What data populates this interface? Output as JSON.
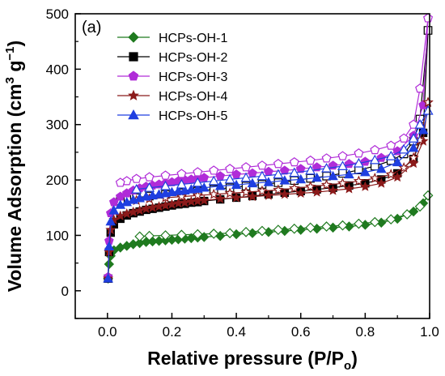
{
  "chart_data": {
    "type": "line",
    "panel_label": "(a)",
    "xlabel_main": "Relative pressure (P/P",
    "xlabel_sub": "o",
    "xlabel_close": ")",
    "ylabel_main": "Volume Adsorption (cm",
    "ylabel_sup1": "3",
    "ylabel_mid": " g",
    "ylabel_sup2": "−1",
    "ylabel_close": ")",
    "xlim": [
      -0.1,
      1.0
    ],
    "ylim": [
      -50,
      500
    ],
    "xticks": [
      "0.0",
      "0.2",
      "0.4",
      "0.6",
      "0.8",
      "1.0"
    ],
    "yticks": [
      "0",
      "100",
      "200",
      "300",
      "400",
      "500"
    ],
    "legend_position": "top-left",
    "series": [
      {
        "name": "HCPs-OH-1",
        "color": "#1f7a1f",
        "marker": "diamond",
        "adsorption": [
          [
            0.002,
            22
          ],
          [
            0.005,
            48
          ],
          [
            0.01,
            63
          ],
          [
            0.02,
            73
          ],
          [
            0.04,
            78
          ],
          [
            0.06,
            81
          ],
          [
            0.08,
            84
          ],
          [
            0.1,
            86
          ],
          [
            0.12,
            88
          ],
          [
            0.14,
            89
          ],
          [
            0.16,
            90
          ],
          [
            0.18,
            91
          ],
          [
            0.2,
            92
          ],
          [
            0.22,
            93
          ],
          [
            0.24,
            94
          ],
          [
            0.26,
            95
          ],
          [
            0.28,
            96
          ],
          [
            0.3,
            97
          ],
          [
            0.35,
            99
          ],
          [
            0.4,
            102
          ],
          [
            0.45,
            104
          ],
          [
            0.5,
            106
          ],
          [
            0.55,
            108
          ],
          [
            0.6,
            110
          ],
          [
            0.65,
            112
          ],
          [
            0.7,
            114
          ],
          [
            0.75,
            116
          ],
          [
            0.8,
            119
          ],
          [
            0.85,
            123
          ],
          [
            0.9,
            130
          ],
          [
            0.95,
            143
          ],
          [
            0.98,
            158
          ],
          [
            0.995,
            172
          ]
        ],
        "desorption": [
          [
            0.995,
            172
          ],
          [
            0.97,
            152
          ],
          [
            0.93,
            138
          ],
          [
            0.88,
            129
          ],
          [
            0.83,
            124
          ],
          [
            0.78,
            121
          ],
          [
            0.73,
            118
          ],
          [
            0.68,
            116
          ],
          [
            0.63,
            114
          ],
          [
            0.58,
            112
          ],
          [
            0.53,
            110
          ],
          [
            0.48,
            108
          ],
          [
            0.43,
            106
          ],
          [
            0.38,
            104
          ],
          [
            0.33,
            103
          ],
          [
            0.28,
            102
          ],
          [
            0.23,
            101
          ],
          [
            0.18,
            100
          ],
          [
            0.13,
            99
          ],
          [
            0.1,
            98
          ]
        ]
      },
      {
        "name": "HCPs-OH-2",
        "color": "#000000",
        "marker": "square",
        "adsorption": [
          [
            0.002,
            22
          ],
          [
            0.005,
            70
          ],
          [
            0.01,
            105
          ],
          [
            0.02,
            120
          ],
          [
            0.04,
            130
          ],
          [
            0.06,
            136
          ],
          [
            0.08,
            140
          ],
          [
            0.1,
            143
          ],
          [
            0.12,
            146
          ],
          [
            0.14,
            148
          ],
          [
            0.16,
            150
          ],
          [
            0.18,
            152
          ],
          [
            0.2,
            154
          ],
          [
            0.22,
            156
          ],
          [
            0.24,
            157
          ],
          [
            0.26,
            159
          ],
          [
            0.28,
            160
          ],
          [
            0.3,
            162
          ],
          [
            0.35,
            165
          ],
          [
            0.4,
            168
          ],
          [
            0.45,
            171
          ],
          [
            0.5,
            174
          ],
          [
            0.55,
            177
          ],
          [
            0.6,
            180
          ],
          [
            0.65,
            183
          ],
          [
            0.7,
            186
          ],
          [
            0.75,
            190
          ],
          [
            0.8,
            194
          ],
          [
            0.85,
            201
          ],
          [
            0.9,
            212
          ],
          [
            0.95,
            238
          ],
          [
            0.98,
            285
          ],
          [
            0.995,
            470
          ]
        ],
        "desorption": [
          [
            0.995,
            470
          ],
          [
            0.97,
            310
          ],
          [
            0.95,
            270
          ],
          [
            0.92,
            247
          ],
          [
            0.88,
            235
          ],
          [
            0.83,
            225
          ],
          [
            0.78,
            218
          ],
          [
            0.73,
            212
          ],
          [
            0.68,
            207
          ],
          [
            0.63,
            203
          ],
          [
            0.58,
            199
          ],
          [
            0.53,
            195
          ],
          [
            0.48,
            192
          ],
          [
            0.43,
            189
          ],
          [
            0.38,
            186
          ],
          [
            0.33,
            183
          ],
          [
            0.28,
            180
          ],
          [
            0.23,
            177
          ],
          [
            0.18,
            174
          ],
          [
            0.13,
            171
          ],
          [
            0.09,
            168
          ],
          [
            0.06,
            165
          ],
          [
            0.04,
            162
          ]
        ]
      },
      {
        "name": "HCPs-OH-3",
        "color": "#b02cd8",
        "marker": "pentagon",
        "adsorption": [
          [
            0.002,
            25
          ],
          [
            0.005,
            90
          ],
          [
            0.01,
            140
          ],
          [
            0.02,
            160
          ],
          [
            0.04,
            170
          ],
          [
            0.06,
            176
          ],
          [
            0.08,
            181
          ],
          [
            0.1,
            185
          ],
          [
            0.12,
            188
          ],
          [
            0.14,
            190
          ],
          [
            0.16,
            192
          ],
          [
            0.18,
            194
          ],
          [
            0.2,
            196
          ],
          [
            0.22,
            198
          ],
          [
            0.24,
            200
          ],
          [
            0.26,
            201
          ],
          [
            0.28,
            203
          ],
          [
            0.3,
            204
          ],
          [
            0.35,
            207
          ],
          [
            0.4,
            210
          ],
          [
            0.45,
            212
          ],
          [
            0.5,
            215
          ],
          [
            0.55,
            217
          ],
          [
            0.6,
            220
          ],
          [
            0.65,
            223
          ],
          [
            0.7,
            226
          ],
          [
            0.75,
            229
          ],
          [
            0.8,
            233
          ],
          [
            0.85,
            240
          ],
          [
            0.9,
            252
          ],
          [
            0.95,
            280
          ],
          [
            0.98,
            335
          ],
          [
            0.995,
            492
          ]
        ],
        "desorption": [
          [
            0.995,
            492
          ],
          [
            0.97,
            365
          ],
          [
            0.95,
            300
          ],
          [
            0.92,
            275
          ],
          [
            0.88,
            262
          ],
          [
            0.83,
            254
          ],
          [
            0.78,
            248
          ],
          [
            0.73,
            243
          ],
          [
            0.68,
            239
          ],
          [
            0.63,
            235
          ],
          [
            0.58,
            232
          ],
          [
            0.53,
            229
          ],
          [
            0.48,
            226
          ],
          [
            0.43,
            223
          ],
          [
            0.38,
            220
          ],
          [
            0.33,
            217
          ],
          [
            0.28,
            214
          ],
          [
            0.23,
            211
          ],
          [
            0.18,
            208
          ],
          [
            0.13,
            205
          ],
          [
            0.09,
            202
          ],
          [
            0.06,
            198
          ],
          [
            0.04,
            195
          ]
        ]
      },
      {
        "name": "HCPs-OH-4",
        "color": "#8b1a1a",
        "marker": "star",
        "adsorption": [
          [
            0.002,
            22
          ],
          [
            0.005,
            70
          ],
          [
            0.01,
            110
          ],
          [
            0.02,
            128
          ],
          [
            0.04,
            135
          ],
          [
            0.06,
            139
          ],
          [
            0.08,
            142
          ],
          [
            0.1,
            145
          ],
          [
            0.12,
            148
          ],
          [
            0.14,
            150
          ],
          [
            0.16,
            152
          ],
          [
            0.18,
            154
          ],
          [
            0.2,
            156
          ],
          [
            0.22,
            158
          ],
          [
            0.24,
            159
          ],
          [
            0.26,
            161
          ],
          [
            0.28,
            162
          ],
          [
            0.3,
            163
          ],
          [
            0.35,
            166
          ],
          [
            0.4,
            168
          ],
          [
            0.45,
            170
          ],
          [
            0.5,
            172
          ],
          [
            0.55,
            174
          ],
          [
            0.6,
            176
          ],
          [
            0.65,
            178
          ],
          [
            0.7,
            181
          ],
          [
            0.75,
            184
          ],
          [
            0.8,
            188
          ],
          [
            0.85,
            194
          ],
          [
            0.9,
            205
          ],
          [
            0.95,
            230
          ],
          [
            0.98,
            270
          ],
          [
            0.995,
            340
          ]
        ],
        "desorption": [
          [
            0.995,
            340
          ],
          [
            0.97,
            272
          ],
          [
            0.95,
            240
          ],
          [
            0.92,
            222
          ],
          [
            0.88,
            210
          ],
          [
            0.83,
            203
          ],
          [
            0.78,
            198
          ],
          [
            0.73,
            194
          ],
          [
            0.68,
            191
          ],
          [
            0.63,
            188
          ],
          [
            0.58,
            185
          ],
          [
            0.53,
            182
          ],
          [
            0.48,
            180
          ],
          [
            0.43,
            178
          ],
          [
            0.38,
            176
          ],
          [
            0.33,
            174
          ],
          [
            0.28,
            172
          ],
          [
            0.23,
            170
          ],
          [
            0.18,
            168
          ],
          [
            0.13,
            166
          ],
          [
            0.09,
            163
          ]
        ]
      },
      {
        "name": "HCPs-OH-5",
        "color": "#1f3fe0",
        "marker": "triangle",
        "adsorption": [
          [
            0.002,
            22
          ],
          [
            0.005,
            80
          ],
          [
            0.01,
            125
          ],
          [
            0.02,
            145
          ],
          [
            0.04,
            155
          ],
          [
            0.06,
            160
          ],
          [
            0.08,
            164
          ],
          [
            0.1,
            167
          ],
          [
            0.12,
            170
          ],
          [
            0.14,
            172
          ],
          [
            0.16,
            174
          ],
          [
            0.18,
            176
          ],
          [
            0.2,
            178
          ],
          [
            0.22,
            180
          ],
          [
            0.24,
            181
          ],
          [
            0.26,
            183
          ],
          [
            0.28,
            184
          ],
          [
            0.3,
            186
          ],
          [
            0.35,
            189
          ],
          [
            0.4,
            191
          ],
          [
            0.45,
            194
          ],
          [
            0.5,
            196
          ],
          [
            0.55,
            199
          ],
          [
            0.6,
            201
          ],
          [
            0.65,
            204
          ],
          [
            0.7,
            207
          ],
          [
            0.75,
            210
          ],
          [
            0.8,
            214
          ],
          [
            0.85,
            220
          ],
          [
            0.9,
            232
          ],
          [
            0.95,
            258
          ],
          [
            0.98,
            290
          ],
          [
            0.995,
            325
          ]
        ],
        "desorption": [
          [
            0.995,
            325
          ],
          [
            0.97,
            300
          ],
          [
            0.95,
            275
          ],
          [
            0.92,
            255
          ],
          [
            0.88,
            243
          ],
          [
            0.83,
            236
          ],
          [
            0.78,
            230
          ],
          [
            0.73,
            225
          ],
          [
            0.68,
            221
          ],
          [
            0.63,
            217
          ],
          [
            0.58,
            213
          ],
          [
            0.53,
            210
          ],
          [
            0.48,
            207
          ],
          [
            0.43,
            204
          ],
          [
            0.38,
            201
          ],
          [
            0.33,
            198
          ],
          [
            0.28,
            195
          ],
          [
            0.23,
            192
          ],
          [
            0.18,
            189
          ],
          [
            0.13,
            186
          ],
          [
            0.09,
            183
          ]
        ]
      }
    ]
  }
}
